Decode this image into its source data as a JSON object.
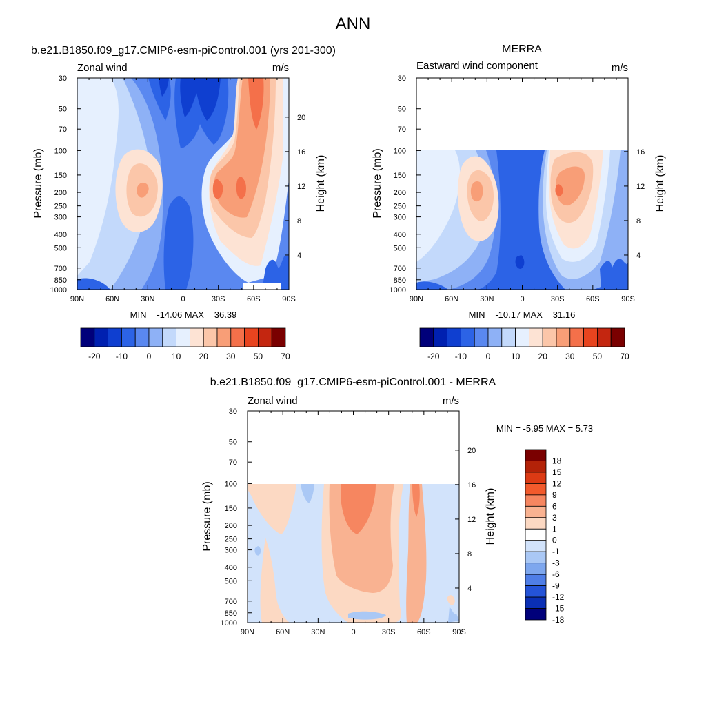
{
  "page": {
    "title": "ANN"
  },
  "chart_data": [
    {
      "type": "heatmap",
      "title": "b.e21.B1850.f09_g17.CMIP6-esm-piControl.001 (yrs 201-300)",
      "left_label": "Zonal wind",
      "units": "m/s",
      "ylabel": "Pressure (mb)",
      "y2label": "Height (km)",
      "x_ticks": [
        "90N",
        "60N",
        "30N",
        "0",
        "30S",
        "60S",
        "90S"
      ],
      "y_ticks": [
        "30",
        "50",
        "70",
        "100",
        "150",
        "200",
        "250",
        "300",
        "400",
        "500",
        "700",
        "850",
        "1000"
      ],
      "y2_ticks": [
        "20",
        "16",
        "12",
        "8",
        "4"
      ],
      "stats": "MIN = -14.06  MAX =  36.39",
      "colorbar_labels": [
        "-20",
        "-10",
        "0",
        "10",
        "20",
        "30",
        "50",
        "70"
      ],
      "min": -14.06,
      "max": 36.39
    },
    {
      "type": "heatmap",
      "title": "MERRA",
      "left_label": "Eastward wind component",
      "units": "m/s",
      "ylabel": "Pressure (mb)",
      "y2label": "Height (km)",
      "x_ticks": [
        "90N",
        "60N",
        "30N",
        "0",
        "30S",
        "60S",
        "90S"
      ],
      "y_ticks": [
        "30",
        "50",
        "70",
        "100",
        "150",
        "200",
        "250",
        "300",
        "400",
        "500",
        "700",
        "850",
        "1000"
      ],
      "y2_ticks": [
        "16",
        "12",
        "8",
        "4"
      ],
      "stats": "MIN = -10.17  MAX =  31.16",
      "colorbar_labels": [
        "-20",
        "-10",
        "0",
        "10",
        "20",
        "30",
        "50",
        "70"
      ],
      "min": -10.17,
      "max": 31.16
    },
    {
      "type": "heatmap",
      "title": "b.e21.B1850.f09_g17.CMIP6-esm-piControl.001 - MERRA",
      "left_label": "Zonal wind",
      "units": "m/s",
      "ylabel": "Pressure (mb)",
      "y2label": "Height (km)",
      "x_ticks": [
        "90N",
        "60N",
        "30N",
        "0",
        "30S",
        "60S",
        "90S"
      ],
      "y_ticks": [
        "30",
        "50",
        "70",
        "100",
        "150",
        "200",
        "250",
        "300",
        "400",
        "500",
        "700",
        "850",
        "1000"
      ],
      "y2_ticks": [
        "20",
        "16",
        "12",
        "8",
        "4"
      ],
      "stats": "MIN =  -5.95  MAX =   5.73",
      "colorbar_labels": [
        "18",
        "15",
        "12",
        "9",
        "6",
        "3",
        "1",
        "0",
        "-1",
        "-3",
        "-6",
        "-9",
        "-12",
        "-15",
        "-18"
      ],
      "min": -5.95,
      "max": 5.73
    }
  ],
  "colors": {
    "main_scale": [
      "#00007a",
      "#0020b0",
      "#0f3fd0",
      "#2c63e6",
      "#5a88f0",
      "#8eb1f6",
      "#c3d9fb",
      "#e6f0fe",
      "#fde3d4",
      "#fbc6a9",
      "#f89e77",
      "#f4704a",
      "#e8441f",
      "#c42610",
      "#7a0000"
    ],
    "diff_scale": [
      "#7a0000",
      "#b32208",
      "#dc3a14",
      "#f25a2c",
      "#f68660",
      "#f9b291",
      "#fcd9c3",
      "#ffffff",
      "#d2e3fb",
      "#aac8f5",
      "#7ea7ee",
      "#4f7ee7",
      "#2453d8",
      "#0a2fb5",
      "#00007a"
    ]
  }
}
